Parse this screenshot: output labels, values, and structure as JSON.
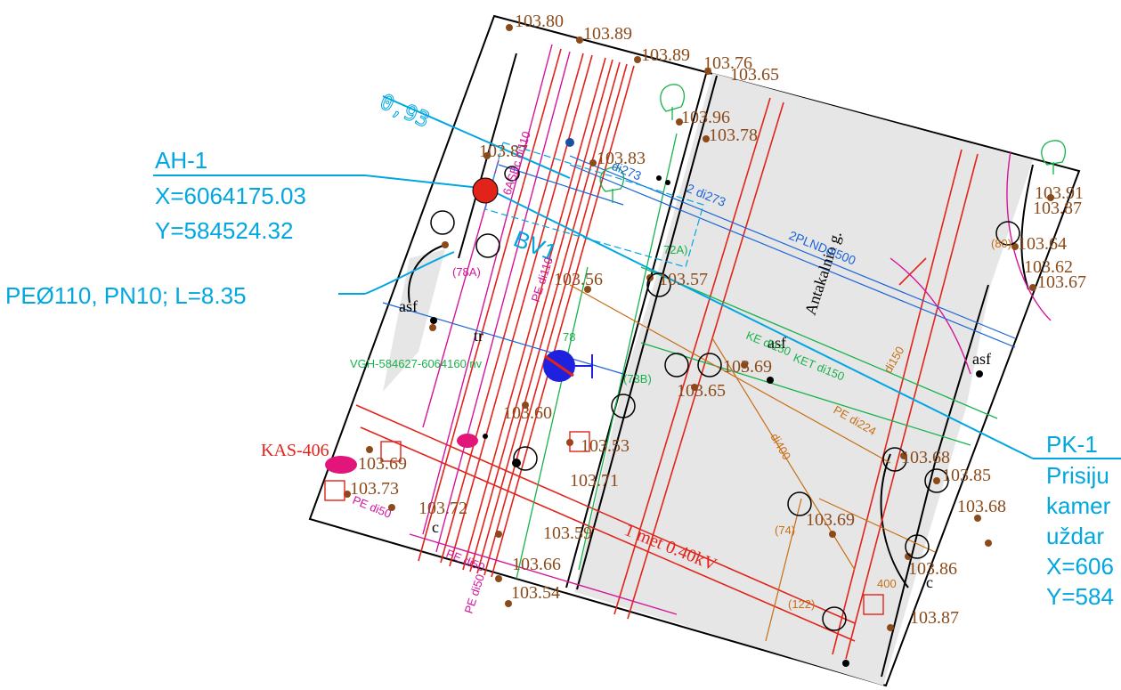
{
  "callouts": {
    "ah1": {
      "title": "AH-1",
      "x": "X=6064175.03",
      "y": "Y=584524.32"
    },
    "pipe": {
      "label": "PEØ110, PN10; L=8.35"
    },
    "pk1": {
      "title": "PK-1",
      "line1": "Prisiju",
      "line2": "kamer",
      "line3": "uždar",
      "line4": "X=606",
      "line5": "Y=584"
    },
    "bv1": {
      "label": "BV1"
    },
    "dim": {
      "label": "0,93"
    }
  },
  "street": {
    "name": "Antakalnio g."
  },
  "labels": {
    "kas": "KAS-406",
    "vgh": "VGH-584627-6064160 nv",
    "met": "1 met 0.40kV",
    "asf": "asf",
    "tr": "tr",
    "c": "c",
    "asbc": "6ASBc di110",
    "pe110": "PE di110",
    "di273a": "2 di273",
    "di273b": "di273",
    "plnd": "2PLNDdi500",
    "ke150": "KE di150",
    "ket150": "KET di150",
    "pe224": "PE di224",
    "di400": "di400",
    "di150": "di150",
    "pe50a": "PE di50",
    "pe50b": "PE di50",
    "pe50c": "PE di50",
    "n72a": "72A)",
    "n78a": "(78A)",
    "n78": "78",
    "n73b": "(73B)",
    "n80": "(80)",
    "n74": "(74)",
    "n122": "(122)",
    "n400": "400"
  },
  "elevations": [
    "103.80",
    "103.89",
    "103.89",
    "103.76",
    "103.65",
    "103.96",
    "103.78",
    "103.83",
    "103.87",
    "103.60",
    "103.53",
    "103.69",
    "103.65",
    "103.66",
    "103.54",
    "103.72",
    "103.73",
    "103.69",
    "103.68",
    "103.85",
    "103.86",
    "103.87",
    "103.64",
    "103.62",
    "103.67",
    "103.91",
    "103.87",
    "103.56",
    "103.57",
    "103.71",
    "103.76",
    "103.59"
  ],
  "colors": {
    "callout": "#00a7e1",
    "elevation": "#8b4a1a",
    "gas": "#e2231a",
    "water": "#d4149b",
    "telecom": "#18b24b",
    "sewer": "#1b65d8",
    "heat": "#c86e14",
    "road": "#e6e6e6"
  }
}
